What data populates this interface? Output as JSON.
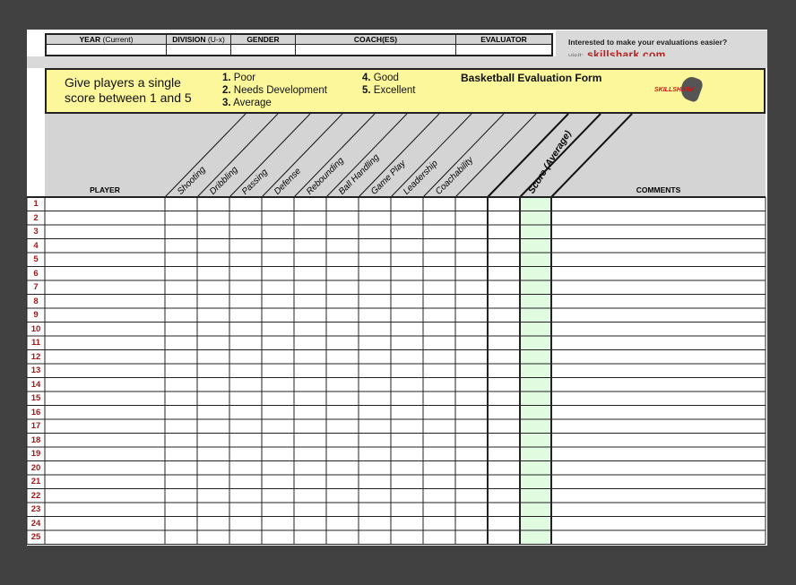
{
  "top_table": {
    "headers": [
      {
        "label": "YEAR",
        "sub": "(Current)"
      },
      {
        "label": "DIVISION",
        "sub": "(U-x)"
      },
      {
        "label": "GENDER",
        "sub": ""
      },
      {
        "label": "COACH(ES)",
        "sub": ""
      },
      {
        "label": "EVALUATOR",
        "sub": ""
      }
    ]
  },
  "promo": {
    "question": "Interested to make your evaluations easier?",
    "visit_label": "visit:",
    "link": "skillshark.com"
  },
  "instructions": {
    "line1": "Give players a single",
    "line2": "score between 1 and 5",
    "scale": [
      {
        "num": "1.",
        "label": "Poor"
      },
      {
        "num": "2.",
        "label": "Needs Development"
      },
      {
        "num": "3.",
        "label": "Average"
      },
      {
        "num": "4.",
        "label": "Good"
      },
      {
        "num": "5.",
        "label": "Excellent"
      }
    ],
    "form_title": "Basketball Evaluation Form",
    "logo_text": "SKILLSHARK"
  },
  "columns": {
    "player": "PLAYER",
    "skills": [
      "Shooting",
      "Dribbling",
      "Passing",
      "Defense",
      "Rebounding",
      "Ball Handling",
      "Game Play",
      "Leadership",
      "Coachability",
      ""
    ],
    "score": "Score (Average)",
    "comments": "COMMENTS"
  },
  "rows": [
    "1",
    "2",
    "3",
    "4",
    "5",
    "6",
    "7",
    "8",
    "9",
    "10",
    "11",
    "12",
    "13",
    "14",
    "15",
    "16",
    "17",
    "18",
    "19",
    "20",
    "21",
    "22",
    "23",
    "24",
    "25"
  ],
  "colors": {
    "background": "#414141",
    "yellow": "#fbf79a",
    "header_gray": "#d4d4d4",
    "score_column": "#e1fbe1",
    "row_number": "#a01818",
    "link": "#b22222"
  }
}
